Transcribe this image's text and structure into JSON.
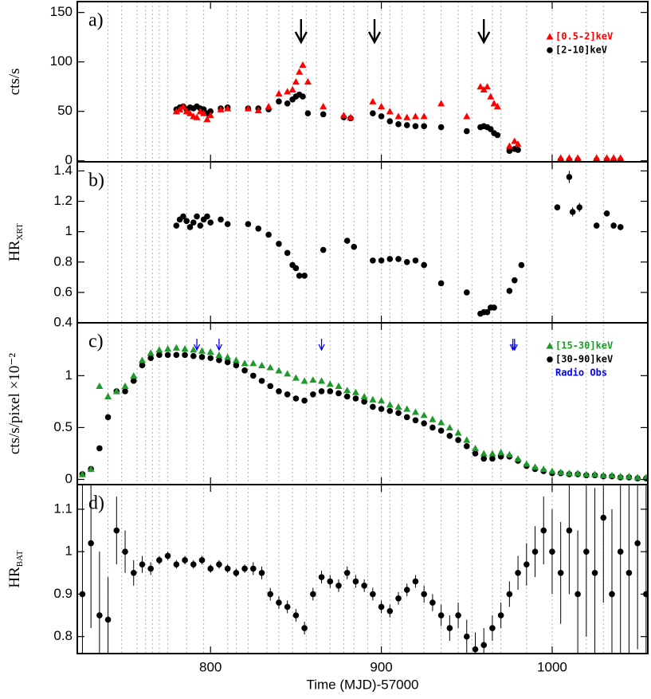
{
  "chart_data": [
    {
      "type": "scatter",
      "panel": "a)",
      "ylabel": "cts/s",
      "xlim": [
        722,
        1056
      ],
      "xticks": [
        800,
        900,
        1000
      ],
      "ylim": [
        -1,
        161
      ],
      "yticks": [
        0,
        50,
        100,
        150
      ],
      "legend": "upper right",
      "vlines": [
        740,
        748,
        757,
        762,
        766,
        770,
        775,
        786,
        796,
        810,
        815,
        822,
        833,
        840,
        848,
        856,
        862,
        870,
        878,
        884,
        892,
        900,
        905,
        912,
        925,
        935,
        945,
        953,
        965,
        970,
        985,
        1000,
        1020,
        1030
      ],
      "arrows_x": [
        853,
        896,
        960
      ],
      "x": [
        780,
        782,
        784,
        786,
        788,
        790,
        792,
        794,
        796,
        798,
        800,
        806,
        810,
        822,
        828,
        834,
        840,
        845,
        848,
        850,
        852,
        854,
        857,
        866,
        878,
        882,
        895,
        900,
        905,
        910,
        915,
        920,
        925,
        935,
        950,
        958,
        960,
        962,
        964,
        966,
        968,
        975,
        978,
        980,
        1005,
        1010,
        1015,
        1026,
        1032,
        1036,
        1040
      ],
      "series": [
        {
          "name": "[0.5-2]keV",
          "color": "#ff0000",
          "marker": "triangle",
          "values": [
            50,
            52,
            55,
            50,
            48,
            45,
            44,
            50,
            48,
            42,
            46,
            52,
            53,
            53,
            51,
            55,
            68,
            70,
            72,
            80,
            90,
            97,
            80,
            55,
            46,
            44,
            60,
            55,
            50,
            45,
            44,
            45,
            45,
            58,
            45,
            75,
            72,
            75,
            65,
            58,
            55,
            15,
            20,
            17,
            3,
            3,
            3,
            3,
            3,
            3,
            3
          ]
        },
        {
          "name": "[2-10]keV",
          "color": "#000000",
          "marker": "circle",
          "values": [
            52,
            54,
            55,
            52,
            54,
            53,
            55,
            53,
            52,
            48,
            50,
            53,
            54,
            53,
            53,
            52,
            60,
            58,
            62,
            65,
            67,
            65,
            48,
            47,
            44,
            43,
            48,
            45,
            40,
            37,
            36,
            35,
            35,
            34,
            30,
            34,
            35,
            34,
            32,
            28,
            26,
            10,
            12,
            11,
            1,
            1,
            1,
            1,
            1,
            1,
            1
          ]
        }
      ]
    },
    {
      "type": "scatter",
      "panel": "b)",
      "ylabel": "HR",
      "ylabel_sub": "XRT",
      "xlim": [
        722,
        1056
      ],
      "xticks": [
        800,
        900,
        1000
      ],
      "ylim": [
        0.4,
        1.46
      ],
      "yticks": [
        0.4,
        0.6,
        0.8,
        1,
        1.2,
        1.4
      ],
      "x": [
        780,
        782,
        784,
        786,
        788,
        790,
        792,
        794,
        796,
        798,
        800,
        806,
        810,
        822,
        828,
        834,
        840,
        845,
        848,
        850,
        852,
        855,
        866,
        880,
        884,
        895,
        900,
        905,
        910,
        915,
        920,
        925,
        935,
        950,
        958,
        960,
        962,
        964,
        966,
        975,
        978,
        982,
        1003,
        1010,
        1012,
        1016,
        1026,
        1032,
        1036,
        1040
      ],
      "series": [
        {
          "color": "#000000",
          "marker": "circle",
          "values": [
            1.04,
            1.08,
            1.1,
            1.07,
            1.03,
            1.06,
            1.1,
            1.04,
            1.08,
            1.1,
            1.06,
            1.08,
            1.05,
            1.05,
            1.02,
            0.98,
            0.92,
            0.86,
            0.78,
            0.76,
            0.71,
            0.71,
            0.88,
            0.94,
            0.9,
            0.81,
            0.81,
            0.82,
            0.82,
            0.8,
            0.81,
            0.78,
            0.66,
            0.6,
            0.46,
            0.47,
            0.47,
            0.5,
            0.5,
            0.61,
            0.68,
            0.78,
            1.16,
            1.36,
            1.13,
            1.16,
            1.04,
            1.12,
            1.04,
            1.03
          ],
          "errors": [
            0.01,
            0.01,
            0.01,
            0.01,
            0.01,
            0.01,
            0.01,
            0.01,
            0.01,
            0.01,
            0.01,
            0.01,
            0.01,
            0.01,
            0.01,
            0.01,
            0.01,
            0.01,
            0.01,
            0.01,
            0.01,
            0.01,
            0.01,
            0.01,
            0.01,
            0.01,
            0.01,
            0.01,
            0.01,
            0.01,
            0.01,
            0.01,
            0.01,
            0.01,
            0.01,
            0.01,
            0.01,
            0.01,
            0.01,
            0.01,
            0.01,
            0.01,
            0.02,
            0.04,
            0.03,
            0.03,
            0.02,
            0.02,
            0.02,
            0.02
          ]
        }
      ]
    },
    {
      "type": "scatter",
      "panel": "c)",
      "ylabel": "cts/s/pixel ×10⁻²",
      "xlim": [
        722,
        1056
      ],
      "xticks": [
        800,
        900,
        1000
      ],
      "ylim": [
        -0.05,
        1.51
      ],
      "yticks": [
        0,
        0.5,
        1
      ],
      "legend": "upper right",
      "radio_obs": {
        "name": "Radio Obs",
        "color": "#0000ff",
        "x": [
          792,
          805,
          865,
          977,
          978
        ]
      },
      "x": [
        725,
        730,
        735,
        740,
        745,
        750,
        755,
        760,
        765,
        770,
        775,
        780,
        785,
        790,
        795,
        800,
        805,
        810,
        815,
        820,
        825,
        830,
        835,
        840,
        845,
        850,
        855,
        860,
        865,
        870,
        875,
        880,
        885,
        890,
        895,
        900,
        905,
        910,
        915,
        920,
        925,
        930,
        935,
        940,
        945,
        950,
        955,
        960,
        965,
        970,
        975,
        980,
        985,
        990,
        995,
        1000,
        1005,
        1010,
        1015,
        1020,
        1025,
        1030,
        1035,
        1040,
        1045,
        1050,
        1055
      ],
      "series": [
        {
          "name": "[15-30]keV",
          "color": "#1f9a2a",
          "marker": "triangle",
          "values": [
            0.05,
            0.1,
            0.9,
            0.8,
            0.85,
            0.9,
            1.0,
            1.15,
            1.22,
            1.25,
            1.26,
            1.27,
            1.26,
            1.25,
            1.24,
            1.23,
            1.2,
            1.18,
            1.15,
            1.12,
            1.12,
            1.1,
            1.08,
            1.05,
            1.02,
            0.98,
            0.95,
            0.96,
            0.95,
            0.92,
            0.9,
            0.86,
            0.84,
            0.8,
            0.77,
            0.76,
            0.72,
            0.7,
            0.68,
            0.65,
            0.62,
            0.58,
            0.55,
            0.5,
            0.45,
            0.38,
            0.3,
            0.25,
            0.25,
            0.26,
            0.24,
            0.2,
            0.15,
            0.12,
            0.1,
            0.08,
            0.07,
            0.06,
            0.06,
            0.05,
            0.05,
            0.04,
            0.04,
            0.03,
            0.03,
            0.02,
            0.02
          ]
        },
        {
          "name": "[30-90]keV",
          "color": "#000000",
          "marker": "circle",
          "values": [
            0.05,
            0.1,
            0.3,
            0.6,
            0.85,
            0.85,
            0.95,
            1.1,
            1.17,
            1.2,
            1.2,
            1.2,
            1.2,
            1.19,
            1.18,
            1.17,
            1.15,
            1.13,
            1.1,
            1.05,
            1.0,
            0.95,
            0.9,
            0.85,
            0.82,
            0.78,
            0.76,
            0.82,
            0.85,
            0.85,
            0.83,
            0.8,
            0.78,
            0.75,
            0.7,
            0.68,
            0.66,
            0.64,
            0.6,
            0.57,
            0.54,
            0.5,
            0.47,
            0.42,
            0.38,
            0.32,
            0.25,
            0.2,
            0.2,
            0.22,
            0.22,
            0.18,
            0.13,
            0.1,
            0.08,
            0.06,
            0.06,
            0.05,
            0.05,
            0.04,
            0.04,
            0.03,
            0.03,
            0.02,
            0.02,
            0.01,
            0.01
          ]
        }
      ]
    },
    {
      "type": "scatter",
      "panel": "d)",
      "ylabel": "HR",
      "ylabel_sub": "BAT",
      "xlabel": "Time (MJD)-57000",
      "xlim": [
        722,
        1056
      ],
      "xticks": [
        800,
        900,
        1000
      ],
      "ylim": [
        0.76,
        1.158
      ],
      "yticks": [
        0.8,
        0.9,
        1,
        1.1
      ],
      "x": [
        725,
        730,
        735,
        740,
        745,
        750,
        755,
        760,
        765,
        770,
        775,
        780,
        785,
        790,
        795,
        800,
        805,
        810,
        815,
        820,
        825,
        830,
        835,
        840,
        845,
        850,
        855,
        860,
        865,
        870,
        875,
        880,
        885,
        890,
        895,
        900,
        905,
        910,
        915,
        920,
        925,
        930,
        935,
        940,
        945,
        950,
        955,
        960,
        965,
        970,
        975,
        980,
        985,
        990,
        995,
        1000,
        1005,
        1010,
        1015,
        1020,
        1025,
        1030,
        1035,
        1040,
        1045,
        1050,
        1055
      ],
      "series": [
        {
          "color": "#000000",
          "marker": "circle",
          "values": [
            0.9,
            1.02,
            0.85,
            0.84,
            1.05,
            1.0,
            0.95,
            0.97,
            0.96,
            0.98,
            0.99,
            0.97,
            0.98,
            0.97,
            0.98,
            0.96,
            0.97,
            0.96,
            0.95,
            0.96,
            0.96,
            0.95,
            0.9,
            0.88,
            0.87,
            0.85,
            0.82,
            0.9,
            0.94,
            0.93,
            0.92,
            0.95,
            0.93,
            0.92,
            0.9,
            0.87,
            0.86,
            0.89,
            0.91,
            0.93,
            0.9,
            0.88,
            0.85,
            0.82,
            0.85,
            0.8,
            0.77,
            0.78,
            0.82,
            0.85,
            0.9,
            0.95,
            0.97,
            1.0,
            1.05,
            1.0,
            0.95,
            1.05,
            0.9,
            1.0,
            0.95,
            1.08,
            0.9,
            1.0,
            0.95,
            1.02,
            0.9
          ],
          "errors": [
            0.3,
            0.2,
            0.15,
            0.1,
            0.08,
            0.05,
            0.03,
            0.02,
            0.015,
            0.01,
            0.01,
            0.01,
            0.01,
            0.01,
            0.01,
            0.01,
            0.01,
            0.01,
            0.01,
            0.01,
            0.015,
            0.015,
            0.015,
            0.015,
            0.015,
            0.015,
            0.015,
            0.015,
            0.015,
            0.015,
            0.015,
            0.015,
            0.015,
            0.015,
            0.015,
            0.015,
            0.015,
            0.015,
            0.015,
            0.015,
            0.02,
            0.02,
            0.025,
            0.03,
            0.03,
            0.04,
            0.04,
            0.04,
            0.03,
            0.03,
            0.03,
            0.04,
            0.05,
            0.06,
            0.08,
            0.1,
            0.12,
            0.15,
            0.15,
            0.2,
            0.2,
            0.2,
            0.2,
            0.25,
            0.25,
            0.25,
            0.3
          ]
        }
      ]
    }
  ]
}
